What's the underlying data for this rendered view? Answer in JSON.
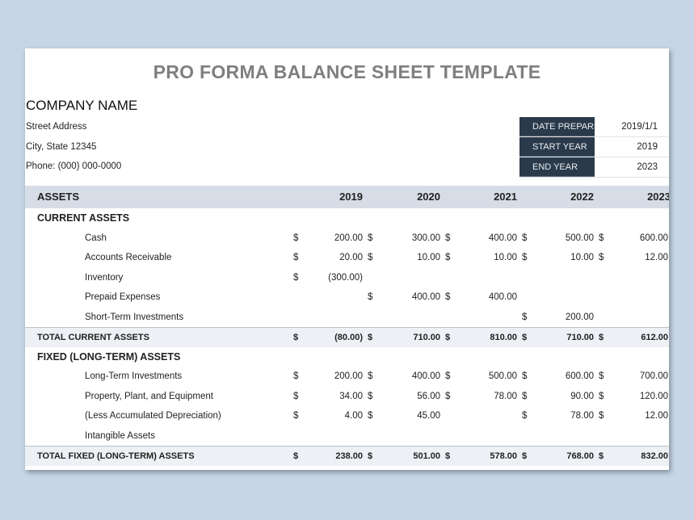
{
  "title": "PRO FORMA BALANCE SHEET TEMPLATE",
  "company": {
    "name": "COMPANY NAME",
    "address": "Street Address",
    "city": "City, State  12345",
    "phone": "Phone: (000) 000-0000"
  },
  "meta": [
    {
      "label": "DATE PREPARED",
      "value": "2019/1/1"
    },
    {
      "label": "START YEAR",
      "value": "2019"
    },
    {
      "label": "END YEAR",
      "value": "2023"
    }
  ],
  "table": {
    "header": {
      "label": "ASSETS",
      "years": [
        "2019",
        "2020",
        "2021",
        "2022",
        "2023"
      ]
    },
    "rows": [
      {
        "type": "sec",
        "label": "CURRENT ASSETS",
        "cells": []
      },
      {
        "type": "item",
        "label": "Cash",
        "cells": [
          [
            "$",
            "200.00"
          ],
          [
            "$",
            "300.00"
          ],
          [
            "$",
            "400.00"
          ],
          [
            "$",
            "500.00"
          ],
          [
            "$",
            "600.00"
          ]
        ]
      },
      {
        "type": "item",
        "label": "Accounts Receivable",
        "cells": [
          [
            "$",
            "20.00"
          ],
          [
            "$",
            "10.00"
          ],
          [
            "$",
            "10.00"
          ],
          [
            "$",
            "10.00"
          ],
          [
            "$",
            "12.00"
          ]
        ]
      },
      {
        "type": "item",
        "label": "Inventory",
        "cells": [
          [
            "$",
            "(300.00)"
          ],
          null,
          null,
          null,
          null
        ]
      },
      {
        "type": "item",
        "label": "Prepaid Expenses",
        "cells": [
          null,
          [
            "$",
            "400.00"
          ],
          [
            "$",
            "400.00"
          ],
          null,
          null
        ]
      },
      {
        "type": "item",
        "label": "Short-Term Investments",
        "cells": [
          null,
          null,
          null,
          [
            "$",
            "200.00"
          ],
          null
        ]
      },
      {
        "type": "tot",
        "label": "TOTAL CURRENT ASSETS",
        "cells": [
          [
            "$",
            "(80.00)"
          ],
          [
            "$",
            "710.00"
          ],
          [
            "$",
            "810.00"
          ],
          [
            "$",
            "710.00"
          ],
          [
            "$",
            "612.00"
          ]
        ]
      },
      {
        "type": "sec",
        "label": "FIXED (LONG-TERM) ASSETS",
        "cells": []
      },
      {
        "type": "item",
        "label": "Long-Term Investments",
        "cells": [
          [
            "$",
            "200.00"
          ],
          [
            "$",
            "400.00"
          ],
          [
            "$",
            "500.00"
          ],
          [
            "$",
            "600.00"
          ],
          [
            "$",
            "700.00"
          ]
        ]
      },
      {
        "type": "item",
        "label": "Property, Plant, and Equipment",
        "cells": [
          [
            "$",
            "34.00"
          ],
          [
            "$",
            "56.00"
          ],
          [
            "$",
            "78.00"
          ],
          [
            "$",
            "90.00"
          ],
          [
            "$",
            "120.00"
          ]
        ]
      },
      {
        "type": "item",
        "label": "(Less Accumulated Depreciation)",
        "cells": [
          [
            "$",
            "4.00"
          ],
          [
            "$",
            "45.00"
          ],
          null,
          [
            "$",
            "78.00"
          ],
          [
            "$",
            "12.00"
          ]
        ]
      },
      {
        "type": "item",
        "label": "Intangible Assets",
        "cells": []
      },
      {
        "type": "tot",
        "label": "TOTAL FIXED (LONG-TERM) ASSETS",
        "cells": [
          [
            "$",
            "238.00"
          ],
          [
            "$",
            "501.00"
          ],
          [
            "$",
            "578.00"
          ],
          [
            "$",
            "768.00"
          ],
          [
            "$",
            "832.00"
          ]
        ]
      }
    ]
  }
}
